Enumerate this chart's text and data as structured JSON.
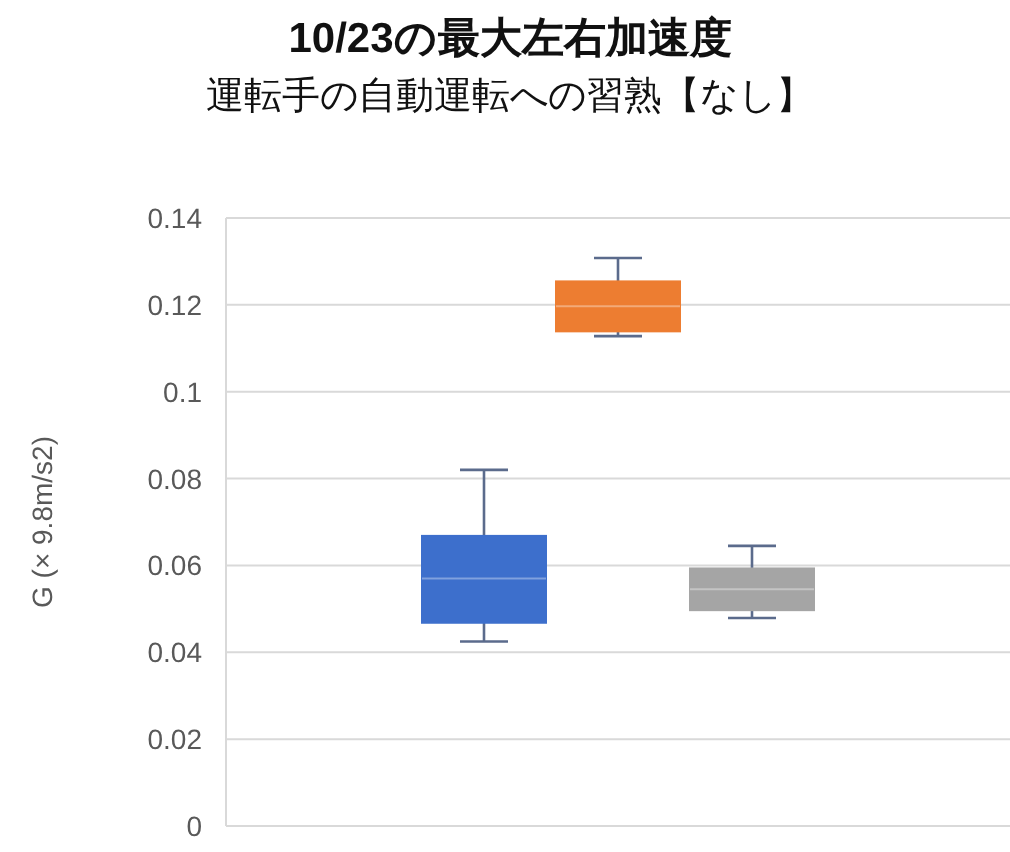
{
  "chart_data": {
    "type": "box",
    "title": "10/23の最大左右加速度",
    "subtitle": "運転手の自動運転への習熟【なし】",
    "ylabel": "G (× 9.8m/s2)",
    "categories": [
      null
    ],
    "series": [
      {
        "color": "#3d6fcc",
        "boxes": [
          {
            "low": 0.0425,
            "q1": 0.0468,
            "median": 0.057,
            "q3": 0.0668,
            "high": 0.082
          }
        ]
      },
      {
        "color": "#ed7d31",
        "boxes": [
          {
            "low": 0.1128,
            "q1": 0.1139,
            "median": 0.1197,
            "q3": 0.1254,
            "high": 0.1308
          }
        ]
      },
      {
        "color": "#a5a5a5",
        "boxes": [
          {
            "low": 0.0479,
            "q1": 0.0497,
            "median": 0.0545,
            "q3": 0.0593,
            "high": 0.0645
          }
        ]
      }
    ],
    "ylim": [
      0,
      0.14
    ],
    "yticks": [
      0,
      0.02,
      0.04,
      0.06,
      0.08,
      0.1,
      0.12,
      0.14
    ],
    "grid": "y"
  }
}
